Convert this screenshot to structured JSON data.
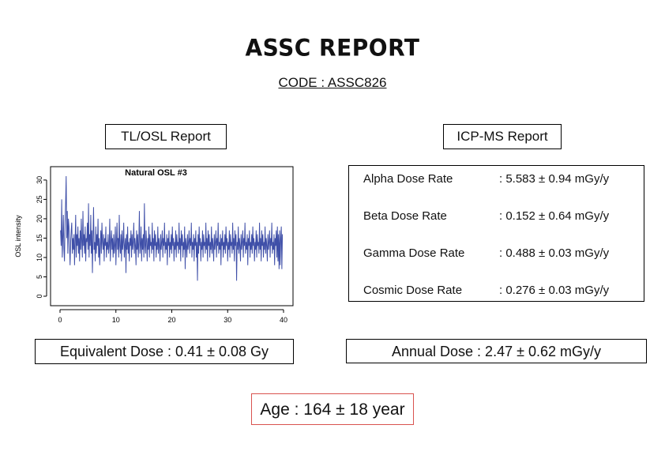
{
  "report": {
    "title": "ASSC REPORT",
    "code": "CODE : ASSC826"
  },
  "sections": {
    "tl_osl_label": "TL/OSL Report",
    "icp_ms_label": "ICP-MS Report"
  },
  "chart_data": {
    "type": "line",
    "title": "Natural OSL #3",
    "xlabel": "",
    "ylabel": "OSL intensity",
    "xlim": [
      0,
      40
    ],
    "ylim": [
      0,
      31
    ],
    "xticks": [
      0,
      10,
      20,
      30,
      40
    ],
    "yticks": [
      0,
      5,
      10,
      15,
      20,
      25,
      30
    ],
    "line_color": "#3f4fa8",
    "series": [
      {
        "x_start": 0.1,
        "x_step": 0.1,
        "values": [
          17,
          13,
          25,
          10,
          15,
          21,
          12,
          9,
          19,
          24,
          31,
          15,
          22,
          11,
          20,
          18,
          13,
          8,
          14,
          17,
          19,
          11,
          15,
          12,
          16,
          8,
          14,
          21,
          10,
          16,
          13,
          18,
          11,
          15,
          9,
          17,
          12,
          20,
          14,
          10,
          22,
          13,
          16,
          11,
          18,
          9,
          15,
          14,
          19,
          12,
          24,
          10,
          16,
          13,
          21,
          11,
          17,
          6,
          15,
          23,
          12,
          14,
          9,
          18,
          11,
          16,
          13,
          20,
          10,
          15,
          8,
          13,
          17,
          11,
          19,
          14,
          12,
          16,
          9,
          15,
          13,
          18,
          10,
          14,
          12,
          16,
          11,
          13,
          20,
          9,
          14,
          17,
          12,
          15,
          10,
          16,
          11,
          13,
          18,
          8,
          14,
          19,
          12,
          15,
          10,
          21,
          13,
          11,
          16,
          9,
          17,
          12,
          14,
          19,
          10,
          13,
          15,
          6,
          16,
          12,
          18,
          11,
          14,
          9,
          15,
          13,
          17,
          10,
          16,
          12,
          14,
          19,
          11,
          15,
          13,
          8,
          17,
          12,
          16,
          10,
          14,
          22,
          11,
          13,
          18,
          9,
          15,
          12,
          16,
          10,
          24,
          13,
          11,
          17,
          14,
          9,
          15,
          12,
          18,
          10,
          16,
          13,
          14,
          11,
          19,
          12,
          15,
          9,
          17,
          13,
          16,
          10,
          14,
          12,
          18,
          11,
          15,
          13,
          9,
          16,
          12,
          14,
          17,
          10,
          15,
          13,
          19,
          11,
          14,
          12,
          16,
          8,
          15,
          13,
          17,
          10,
          14,
          12,
          16,
          11,
          18,
          13,
          15,
          9,
          14,
          12,
          17,
          10,
          16,
          13,
          14,
          11,
          19,
          12,
          15,
          9,
          17,
          13,
          16,
          10,
          14,
          12,
          18,
          7,
          15,
          13,
          10,
          16,
          12,
          14,
          17,
          11,
          15,
          13,
          19,
          10,
          14,
          12,
          16,
          9,
          15,
          13,
          17,
          10,
          14,
          4,
          16,
          11,
          18,
          13,
          15,
          9,
          14,
          12,
          17,
          10,
          16,
          13,
          14,
          11,
          19,
          12,
          15,
          9,
          17,
          13,
          16,
          10,
          14,
          12,
          18,
          11,
          15,
          13,
          9,
          16,
          12,
          14,
          17,
          10,
          15,
          13,
          19,
          11,
          14,
          12,
          16,
          8,
          15,
          13,
          17,
          10,
          14,
          12,
          16,
          11,
          18,
          13,
          15,
          9,
          14,
          12,
          17,
          10,
          16,
          13,
          14,
          11,
          19,
          12,
          15,
          9,
          17,
          13,
          16,
          4,
          14,
          12,
          18,
          11,
          15,
          13,
          9,
          16,
          12,
          14,
          17,
          10,
          15,
          13,
          19,
          11,
          14,
          12,
          16,
          8,
          15,
          13,
          17,
          10,
          14,
          12,
          16,
          11,
          18,
          13,
          15,
          9,
          14,
          12,
          17,
          10,
          16,
          13,
          14,
          11,
          19,
          12,
          15,
          9,
          17,
          13,
          16,
          10,
          14,
          12,
          18,
          11,
          15,
          13,
          9,
          16,
          12,
          14,
          17,
          10,
          15,
          13,
          19,
          11,
          14,
          12,
          16,
          8,
          15,
          13,
          17,
          10,
          18,
          9,
          16,
          7,
          17,
          8,
          15,
          18,
          7,
          16
        ]
      }
    ]
  },
  "dose_rates": [
    {
      "label": "Alpha Dose Rate",
      "value": ": 5.583 ± 0.94 mGy/y"
    },
    {
      "label": "Beta Dose Rate",
      "value": ": 0.152 ± 0.64 mGy/y"
    },
    {
      "label": "Gamma Dose Rate",
      "value": ": 0.488 ± 0.03 mGy/y"
    },
    {
      "label": "Cosmic Dose Rate",
      "value": ": 0.276 ± 0.03 mGy/y"
    }
  ],
  "results": {
    "equivalent_dose": "Equivalent Dose : 0.41 ± 0.08 Gy",
    "annual_dose": "Annual Dose : 2.47 ± 0.62 mGy/y",
    "age": "Age : 164 ± 18 year"
  },
  "colors": {
    "age_border": "#d9534f"
  }
}
